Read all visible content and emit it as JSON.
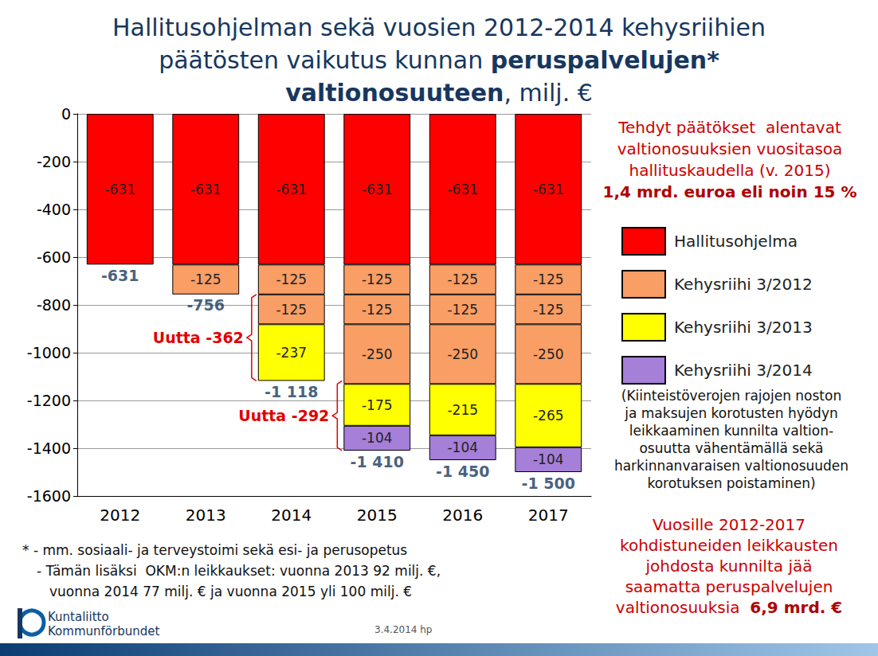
{
  "chart_data": {
    "type": "bar",
    "title": "Hallitusohjelman sekä vuosien 2012-2014 kehysriihien\npäätösten vaikutus kunnan peruspalvelujen*\nvaltionosuuteen, milj. €",
    "title_emphasis": [
      "peruspalvelujen*",
      "valtionosuuteen"
    ],
    "categories": [
      "2012",
      "2013",
      "2014",
      "2015",
      "2016",
      "2017"
    ],
    "series": [
      {
        "name": "Hallitusohjelma",
        "color": "#ff0000",
        "values": [
          -631,
          -631,
          -631,
          -631,
          -631,
          -631
        ]
      },
      {
        "name": "Kehysriihi 3/2012",
        "color": "#f99e65",
        "values": [
          null,
          -125,
          -125,
          -125,
          -125,
          -125
        ]
      },
      {
        "name": "Kehysriihi 3/2012",
        "color": "#f99e65",
        "values": [
          null,
          null,
          -125,
          -125,
          -125,
          -125
        ]
      },
      {
        "name": "Kehysriihi 3/2012",
        "color": "#f99e65",
        "values": [
          null,
          null,
          null,
          -250,
          -250,
          -250
        ]
      },
      {
        "name": "Kehysriihi 3/2013",
        "color": "#ffff00",
        "values": [
          null,
          null,
          -237,
          -175,
          -215,
          -265
        ]
      },
      {
        "name": "Kehysriihi 3/2014",
        "color": "#a57fd8",
        "values": [
          null,
          null,
          null,
          -104,
          -104,
          -104
        ]
      }
    ],
    "totals": {
      "values": [
        -631,
        -756,
        -1118,
        -1410,
        -1450,
        -1500
      ],
      "value_labels": [
        "-631",
        "-756",
        "-1 118",
        "-1 410",
        "-1 450",
        "-1 500"
      ]
    },
    "annotations": [
      {
        "text": "Uutta -362",
        "category": "2014",
        "from": -756,
        "to": -1118
      },
      {
        "text": "Uutta -292",
        "category": "2015",
        "from": -1118,
        "to": -1410
      }
    ],
    "ylim": [
      -1600,
      0
    ],
    "yticks": [
      -1600,
      -1400,
      -1200,
      -1000,
      -800,
      -600,
      -400,
      -200,
      0
    ],
    "stacked": true,
    "data_labels": true,
    "grid": true,
    "legend": "right"
  },
  "notes": {
    "summary": {
      "text": "Tehdyt päätökset  alentavat\nvaltionosuuksien vuositasoa\nhallituskaudella (v. 2015)\n1,4 mrd. euroa eli noin 15 %",
      "emphasis": [
        "1,4 mrd. euroa eli noin 15 %"
      ]
    },
    "legend_note": {
      "text": "(Kiinteistöverojen rajojen noston\nja maksujen korotusten hyödyn\nleikkaaminen kunnilta valtion-\nosuutta vähentämällä sekä\nharkinnanvaraisen valtionosuuden\nkorotuksen poistaminen)",
      "emphasis": []
    },
    "total_note": {
      "text": "Vuosille 2012-2017\nkohdistuneiden leikkausten\njohdosta kunnilta jää\nsaamatta peruspalvelujen\nvaltionosuuksia  6,9 mrd. €",
      "emphasis": [
        "6,9 mrd. €"
      ]
    },
    "footnote": [
      "* - mm. sosiaali- ja terveystoimi sekä esi- ja perusopetus",
      "- Tämän lisäksi  OKM:n leikkaukset: vuonna 2013 92 milj. €,",
      "vuonna 2014 77 milj. € ja vuonna 2015 yli 100 milj. €"
    ],
    "publisher": [
      "Kuntaliitto",
      "Kommunförbundet"
    ],
    "date": "3.4.2014 hp"
  }
}
